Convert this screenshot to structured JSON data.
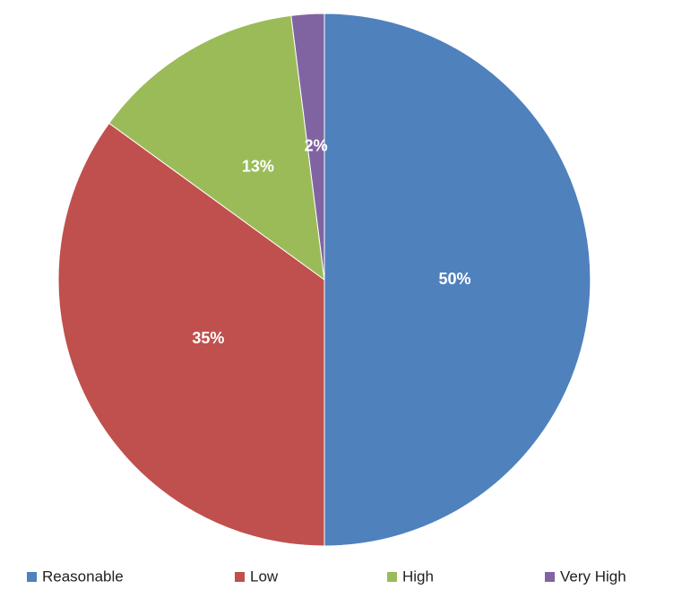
{
  "chart_data": {
    "type": "pie",
    "categories": [
      "Reasonable",
      "Low",
      "High",
      "Very High"
    ],
    "values": [
      50,
      35,
      13,
      2
    ],
    "value_labels": [
      "50%",
      "35%",
      "13%",
      "2%"
    ],
    "colors": [
      "#4f81bd",
      "#c0504d",
      "#9bbb59",
      "#8064a2"
    ],
    "legend": "bottom"
  }
}
